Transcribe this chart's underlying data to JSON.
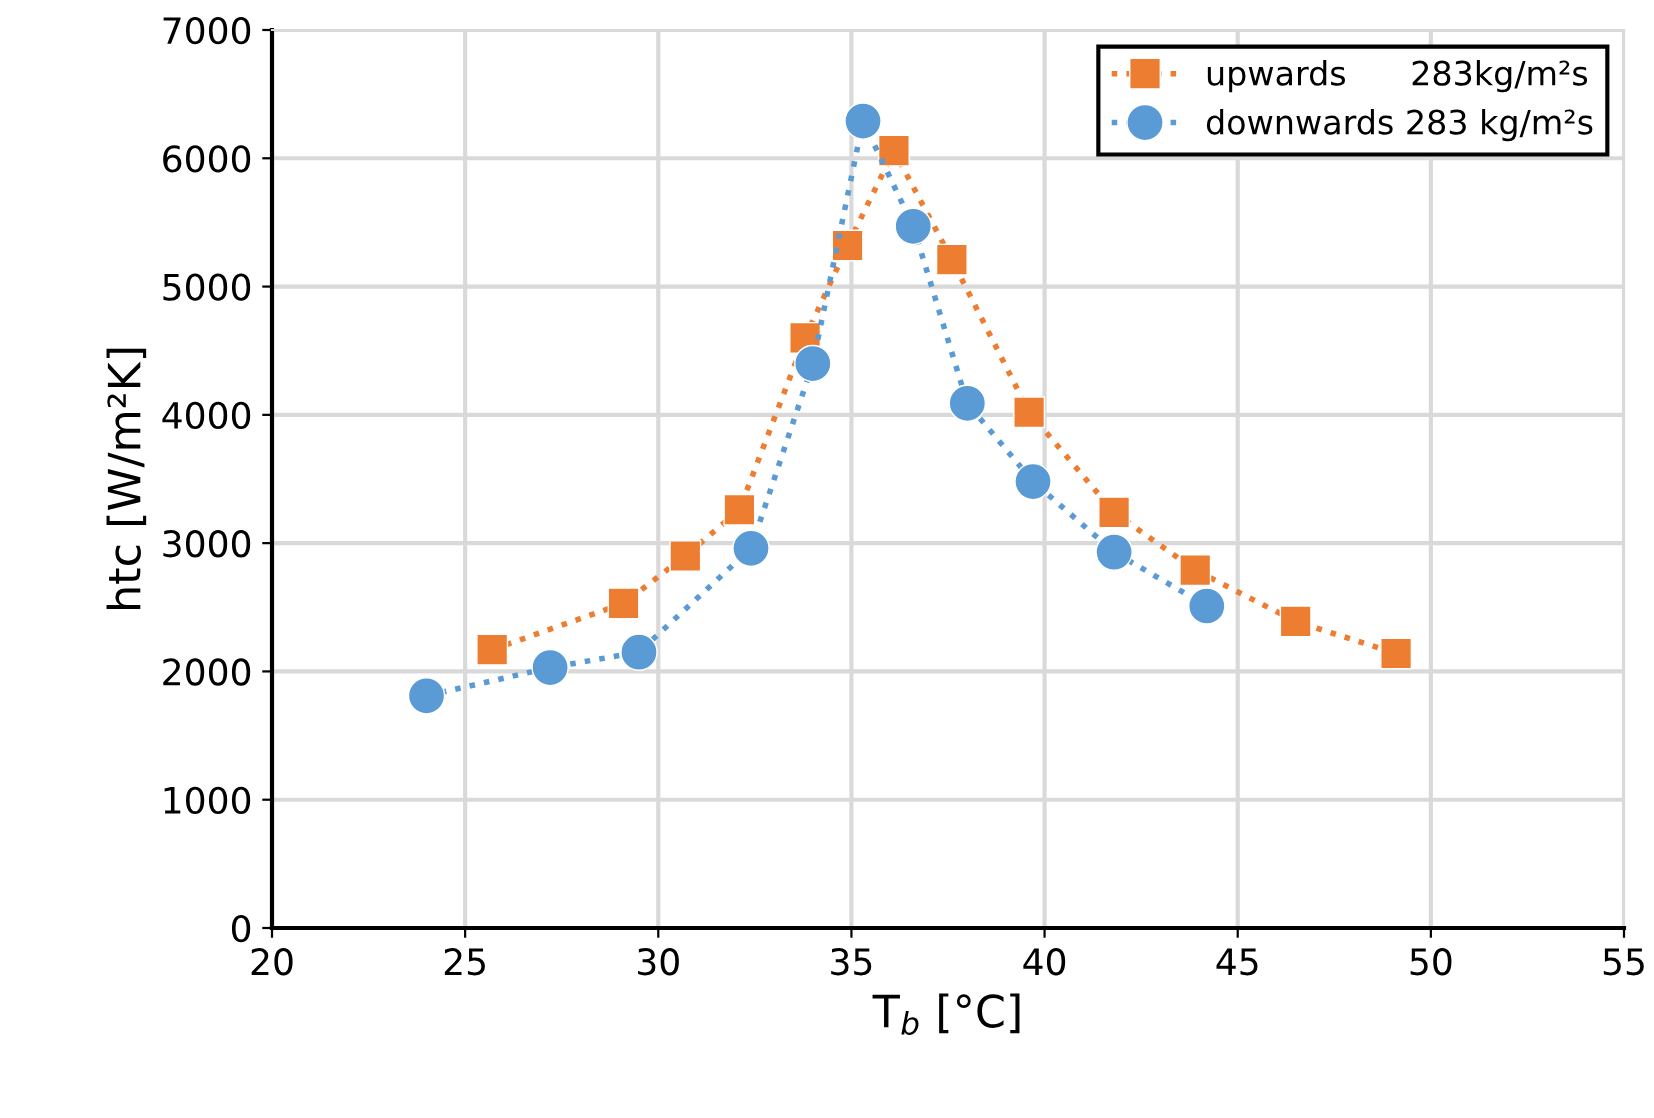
{
  "chart_data": {
    "type": "line",
    "xlabel": "T$_{b}$ [°C]",
    "ylabel": "htc [W/m²K]",
    "xlim": [
      20,
      55
    ],
    "xticks": [
      20,
      25,
      30,
      35,
      40,
      45,
      50,
      55
    ],
    "ylim": [
      0,
      7000
    ],
    "yticks": [
      0,
      1000,
      2000,
      3000,
      4000,
      5000,
      6000,
      7000
    ],
    "grid": true,
    "legend": "top right",
    "line_style": "dotted",
    "series": [
      {
        "name": "upwards      283kg/m²s",
        "color": "#ed7d31",
        "marker": "square",
        "x": [
          25.7,
          29.1,
          30.7,
          32.1,
          33.8,
          34.9,
          36.1,
          37.6,
          39.6,
          41.8,
          43.9,
          46.5,
          49.1
        ],
        "values": [
          2170,
          2530,
          2900,
          3260,
          4600,
          5320,
          6060,
          5210,
          4020,
          3240,
          2790,
          2390,
          2140
        ]
      },
      {
        "name": "downwards 283 kg/m²s",
        "color": "#5b9bd5",
        "marker": "circle",
        "x": [
          24.0,
          27.2,
          29.5,
          32.4,
          34.0,
          35.3,
          36.6,
          38.0,
          39.7,
          41.8,
          44.2
        ],
        "values": [
          1810,
          2030,
          2150,
          2960,
          4400,
          6290,
          5470,
          4090,
          3480,
          2930,
          2510
        ]
      }
    ]
  }
}
